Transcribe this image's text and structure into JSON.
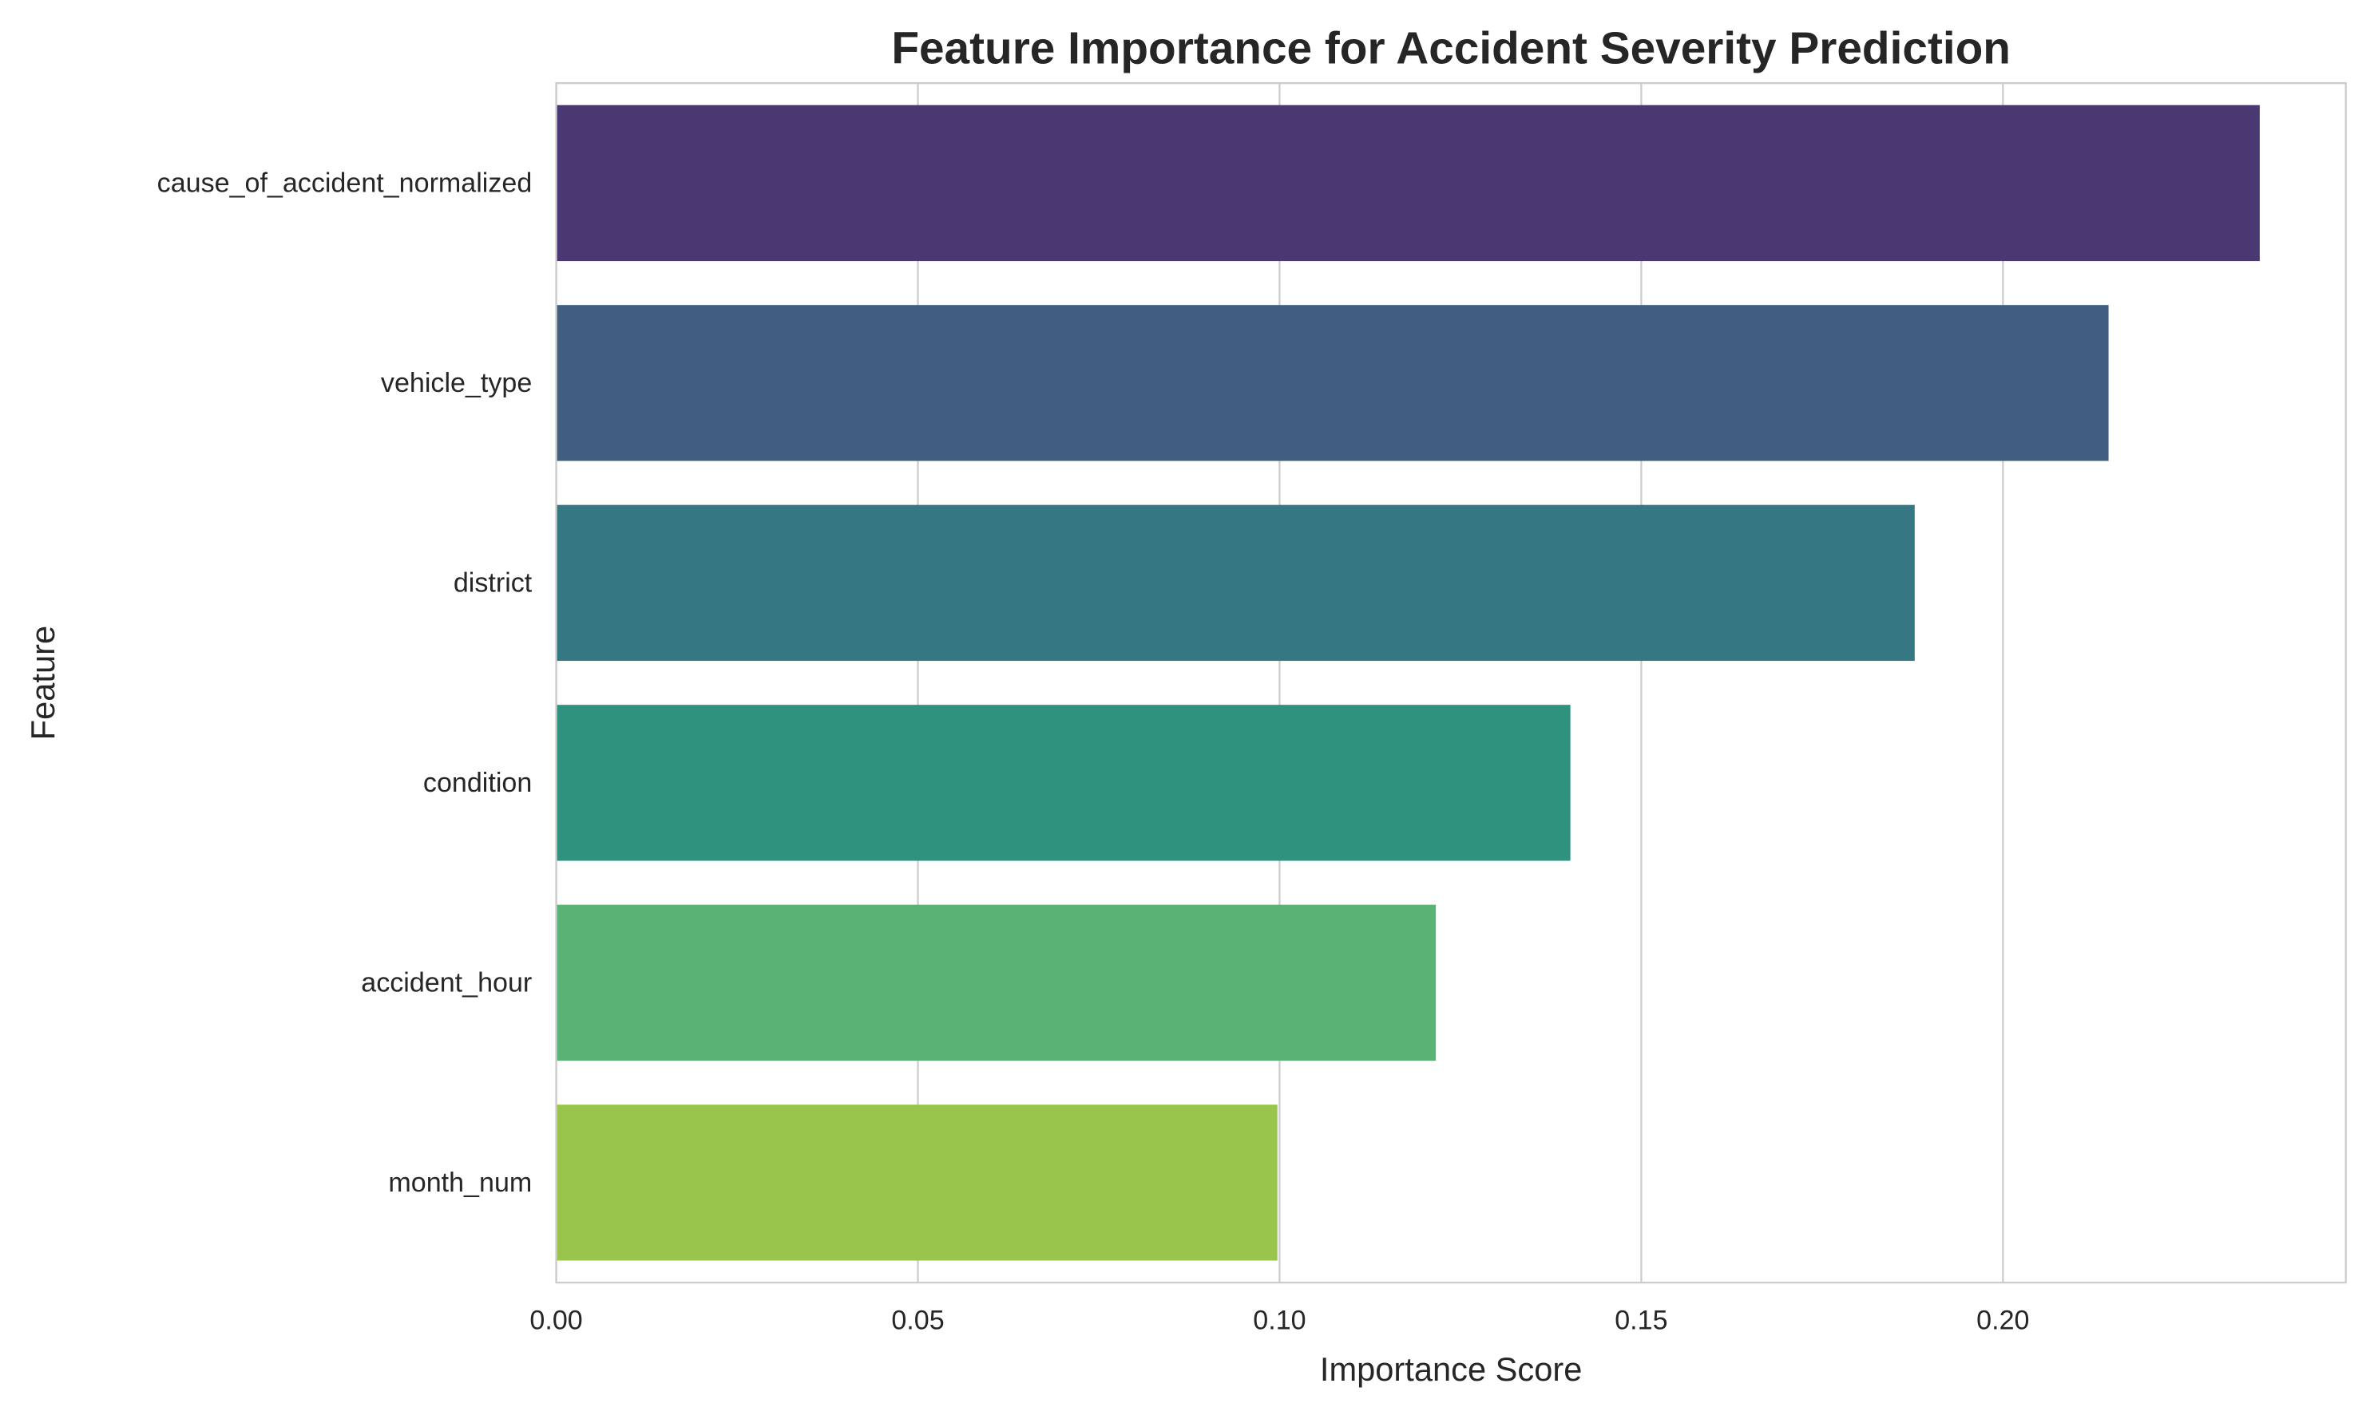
{
  "chart_data": {
    "type": "bar",
    "orientation": "horizontal",
    "title": "Feature Importance for Accident Severity Prediction",
    "xlabel": "Importance Score",
    "ylabel": "Feature",
    "categories": [
      "cause_of_accident_normalized",
      "vehicle_type",
      "district",
      "condition",
      "accident_hour",
      "month_num"
    ],
    "values": [
      0.2355,
      0.2146,
      0.1878,
      0.1402,
      0.1216,
      0.0997
    ],
    "colors": [
      "#4a3872",
      "#415e81",
      "#357782",
      "#2f927e",
      "#5ab274",
      "#9ac54c"
    ],
    "xlim": [
      0,
      0.2474
    ],
    "xticks": [
      0.0,
      0.05,
      0.1,
      0.15,
      0.2
    ],
    "xtick_labels": [
      "0.00",
      "0.05",
      "0.10",
      "0.15",
      "0.20"
    ],
    "grid": "vertical",
    "legend": "none"
  }
}
